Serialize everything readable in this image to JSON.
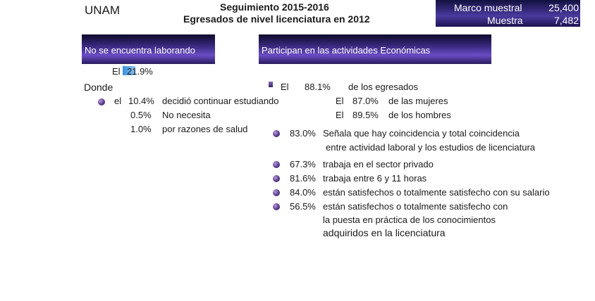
{
  "header": {
    "institution": "UNAM",
    "title_line1": "Seguimiento 2015-2016",
    "title_line2": "Egresados de nivel licenciatura en 2012"
  },
  "sample": {
    "marco_label": "Marco muestral",
    "marco_value": "25,400",
    "muestra_label": "Muestra",
    "muestra_value": "7,482"
  },
  "left": {
    "banner": "No se encuentra laborando",
    "el_label": "El",
    "pct": "21.9%",
    "pct_value": 21.9,
    "donde": "Donde",
    "el2": "el",
    "items": [
      {
        "pct": "10.4%",
        "text": "decidió continuar estudiando"
      },
      {
        "pct": "0.5%",
        "text": "No necesita"
      },
      {
        "pct": "1.0%",
        "text": "por razones de salud"
      }
    ]
  },
  "right": {
    "banner": "Participan en las actividades Económicas",
    "el_label": "El",
    "pct": "88.1%",
    "text": "de los egresados",
    "women_el": "El",
    "women_pct": "87.0%",
    "women_text": "de las mujeres",
    "men_el": "El",
    "men_pct": "89.5%",
    "men_text": "de los hombres",
    "facts": [
      {
        "pct": "83.0%",
        "line1": "Señala que hay coincidencia y total coincidencia",
        "line2": "entre actividad laboral y los estudios de licenciatura"
      },
      {
        "pct": "67.3%",
        "line1": "trabaja en el sector privado"
      },
      {
        "pct": "81.6%",
        "line1": "trabaja entre 6 y 11 horas"
      },
      {
        "pct": "84.0%",
        "line1": "están satisfechos o totalmente satisfecho con su salario"
      },
      {
        "pct": "56.5%",
        "line1": "están satisfechos o totalmente satisfecho con",
        "line2": "la puesta en práctica de los conocimientos",
        "line3": "adquiridos en la licenciatura"
      }
    ]
  }
}
